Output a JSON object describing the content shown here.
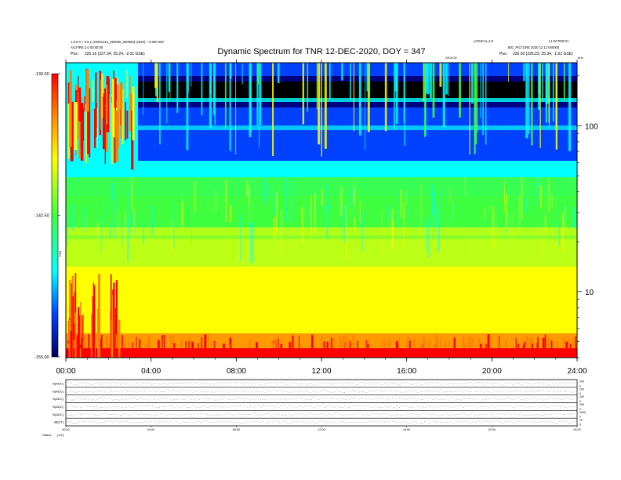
{
  "header": {
    "title": "Dynamic Spectrum for TNR 12-DEC-2020, DOY = 347",
    "left_line1": "1.0.0.0 + 0.0.1 (20201212_000000_000000) (2020) + 0.000 000",
    "left_line2": "AG:FIRE 2.0 00:00:00",
    "left_pos_label": "Pos :",
    "left_pos_value": "225.16 (227.34, 25.24, -2.01 GSE)",
    "right_line1": "LOGICAL 2.0",
    "right_line2": "L1:W:TNR:01",
    "right_line3": "BIG_PICTURE 2020 12 12 000000",
    "right_pos_label": "Pos :",
    "right_pos_value": "226.92 (226.23, 25.34, -1.01 GSE)",
    "center_small": "DEVICE",
    "corner_small": "kHz"
  },
  "colorbar": {
    "label": "TNR",
    "ticks": [
      {
        "label": "-130.00",
        "frac": 0.0
      },
      {
        "label": "-142.50",
        "frac": 0.5
      },
      {
        "label": "-155.00",
        "frac": 1.0
      }
    ]
  },
  "colors": {
    "black": "#000000",
    "navy": "#000080",
    "blue": "#0040ff",
    "cyan": "#00ffff",
    "green": "#40ff40",
    "yellow": "#ffff00",
    "orange": "#ff8000",
    "red": "#ff0000"
  },
  "chart_data": [
    {
      "type": "heatmap",
      "title": "Dynamic Spectrum for TNR 12-DEC-2020, DOY = 347",
      "xlabel": "",
      "ylabel": "",
      "x_ticks": [
        "00:00",
        "04:00",
        "08:00",
        "12:00",
        "16:00",
        "20:00",
        "24:00"
      ],
      "x_range_hours": [
        0,
        24
      ],
      "y_scale": "log",
      "y_ticks": [
        "10",
        "100"
      ],
      "y_range_khz": [
        4,
        240
      ],
      "colorbar_range": [
        -155.0,
        -130.0
      ],
      "grid": false
    },
    {
      "type": "line",
      "panels": [
        {
          "label": "B(ADC)",
          "range": [
            "200",
            "0"
          ]
        },
        {
          "label": "B(ADC)",
          "range": [
            "200",
            "0"
          ]
        },
        {
          "label": "B(ADC)",
          "range": [
            "200",
            "0"
          ]
        },
        {
          "label": "B(ADC)",
          "range": [
            "200",
            "0"
          ]
        },
        {
          "label": "B(ADC)",
          "range": [
            "1000",
            "0"
          ]
        },
        {
          "label": "dB(TT)",
          "range": [
            "10",
            "0"
          ]
        }
      ],
      "x_ticks": [
        "00:00",
        "04:00",
        "08:00",
        "12:00",
        "16:00",
        "20:00",
        "24:00"
      ],
      "footer_label": "Status",
      "footer_value": "(1/0)"
    }
  ]
}
